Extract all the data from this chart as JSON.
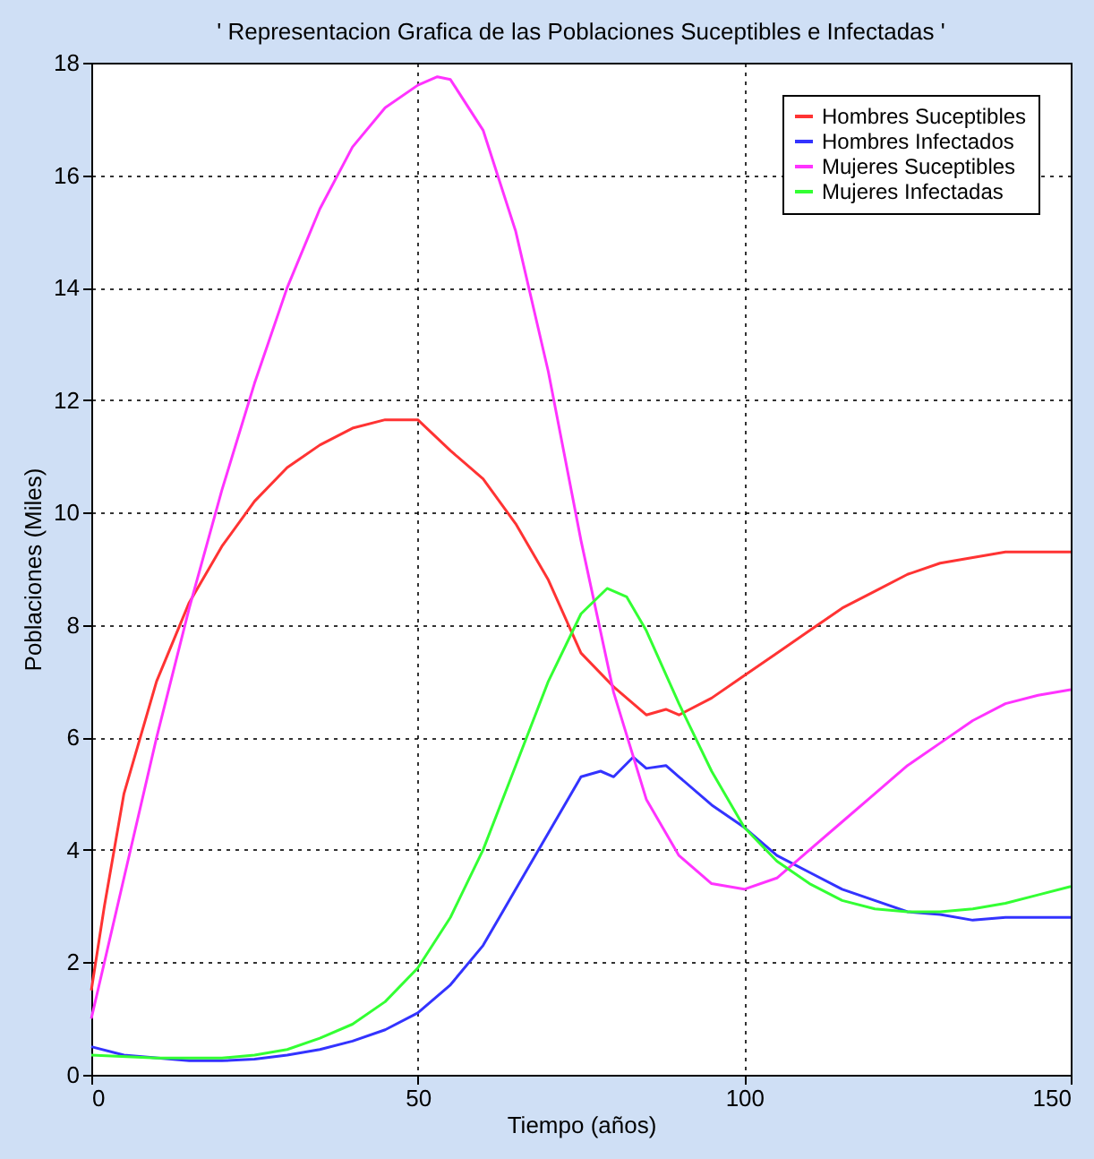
{
  "chart_data": {
    "type": "line",
    "title": "' Representacion Grafica de las Poblaciones Suceptibles e Infectadas '",
    "xlabel": "Tiempo (años)",
    "ylabel": "Poblaciones (Miles)",
    "xlim": [
      0,
      150
    ],
    "ylim": [
      0,
      18
    ],
    "xticks": [
      0,
      50,
      100,
      150
    ],
    "yticks": [
      0,
      2,
      4,
      6,
      8,
      10,
      12,
      14,
      16,
      18
    ],
    "grid": true,
    "legend": "top right",
    "line_style": "solid",
    "series": [
      {
        "name": "Hombres Suceptibles",
        "color": "#ff3333",
        "x": [
          0,
          2,
          5,
          10,
          15,
          20,
          25,
          30,
          35,
          40,
          45,
          50,
          55,
          60,
          65,
          70,
          75,
          80,
          85,
          88,
          90,
          95,
          100,
          105,
          110,
          115,
          120,
          125,
          130,
          135,
          140,
          145,
          150
        ],
        "values": [
          1.5,
          3,
          5.0,
          7.0,
          8.4,
          9.4,
          10.2,
          10.8,
          11.2,
          11.5,
          11.65,
          11.65,
          11.1,
          10.6,
          9.8,
          8.8,
          7.5,
          6.9,
          6.4,
          6.5,
          6.4,
          6.7,
          7.1,
          7.5,
          7.9,
          8.3,
          8.6,
          8.9,
          9.1,
          9.2,
          9.3,
          9.3,
          9.3
        ]
      },
      {
        "name": "Hombres Infectados",
        "color": "#3333ff",
        "x": [
          0,
          5,
          15,
          20,
          25,
          30,
          35,
          40,
          45,
          50,
          55,
          60,
          65,
          70,
          75,
          78,
          80,
          83,
          85,
          88,
          90,
          95,
          100,
          105,
          110,
          115,
          120,
          125,
          130,
          135,
          140,
          145,
          150
        ],
        "values": [
          0.5,
          0.35,
          0.25,
          0.25,
          0.28,
          0.35,
          0.45,
          0.6,
          0.8,
          1.1,
          1.6,
          2.3,
          3.3,
          4.3,
          5.3,
          5.4,
          5.3,
          5.65,
          5.45,
          5.5,
          5.3,
          4.8,
          4.4,
          3.9,
          3.6,
          3.3,
          3.1,
          2.9,
          2.85,
          2.75,
          2.8,
          2.8,
          2.8
        ]
      },
      {
        "name": "Mujeres Suceptibles",
        "color": "#ff33ff",
        "x": [
          0,
          5,
          10,
          15,
          20,
          25,
          30,
          35,
          40,
          45,
          50,
          53,
          55,
          60,
          65,
          70,
          75,
          80,
          85,
          90,
          95,
          100,
          105,
          110,
          115,
          120,
          125,
          130,
          135,
          140,
          145,
          150
        ],
        "values": [
          1.0,
          3.5,
          6.0,
          8.3,
          10.4,
          12.3,
          14.0,
          15.4,
          16.5,
          17.2,
          17.6,
          17.75,
          17.7,
          16.8,
          15.0,
          12.5,
          9.5,
          6.8,
          4.9,
          3.9,
          3.4,
          3.3,
          3.5,
          4.0,
          4.5,
          5.0,
          5.5,
          5.9,
          6.3,
          6.6,
          6.75,
          6.85
        ]
      },
      {
        "name": "Mujeres Infectadas",
        "color": "#33ff33",
        "x": [
          0,
          10,
          20,
          25,
          30,
          35,
          40,
          45,
          50,
          55,
          60,
          65,
          70,
          75,
          79,
          82,
          85,
          90,
          95,
          100,
          105,
          110,
          115,
          120,
          125,
          130,
          135,
          140,
          145,
          150
        ],
        "values": [
          0.35,
          0.3,
          0.3,
          0.35,
          0.45,
          0.65,
          0.9,
          1.3,
          1.9,
          2.8,
          4.0,
          5.5,
          7.0,
          8.2,
          8.65,
          8.5,
          7.9,
          6.6,
          5.4,
          4.4,
          3.8,
          3.4,
          3.1,
          2.95,
          2.9,
          2.9,
          2.95,
          3.05,
          3.2,
          3.35
        ]
      }
    ]
  }
}
